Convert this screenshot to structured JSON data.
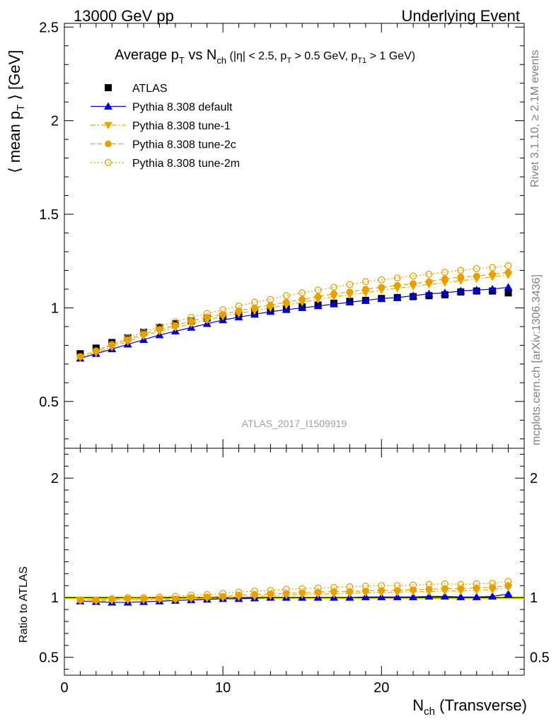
{
  "header": {
    "left": "13000 GeV pp",
    "right": "Underlying Event"
  },
  "side_labels": {
    "rivet": "Rivet 3.1.10, ≥ 2.1M events",
    "mcplots": "mcplots.cern.ch [arXiv:1306.3436]"
  },
  "watermark": "ATLAS_2017_I1509919",
  "chart_data": [
    {
      "type": "scatter",
      "panel": "main",
      "title_parts": {
        "main": "Average p",
        "main_sub": "T",
        "vs": " vs N",
        "vs_sub": "ch",
        "cuts_a": " (|η| < 2.5, p",
        "cuts_a_sub": "T",
        "cuts_b": " > 0.5 GeV, p",
        "cuts_b_sub": "T1",
        "cuts_c": " > 1 GeV)"
      },
      "ylabel_parts": {
        "pre": "⟨ mean p",
        "sub": "T",
        "post": " ⟩ [GeV]"
      },
      "xlim": [
        0,
        29
      ],
      "ylim": [
        0.25,
        2.52
      ],
      "y_ticks": [
        0.5,
        1,
        1.5,
        2,
        2.5
      ],
      "y_tick_labels": [
        "0.5",
        "1",
        "1.5",
        "2",
        "2.5"
      ],
      "legend_position": "top-left",
      "x": [
        1,
        2,
        3,
        4,
        5,
        6,
        7,
        8,
        9,
        10,
        11,
        12,
        13,
        14,
        15,
        16,
        17,
        18,
        19,
        20,
        21,
        22,
        23,
        24,
        25,
        26,
        27,
        28
      ],
      "series": [
        {
          "name": "ATLAS",
          "marker": "square",
          "color": "#000000",
          "line": "none",
          "values": [
            0.755,
            0.785,
            0.815,
            0.84,
            0.87,
            0.895,
            0.915,
            0.93,
            0.945,
            0.955,
            0.965,
            0.975,
            0.985,
            0.995,
            1.005,
            1.015,
            1.025,
            1.035,
            1.04,
            1.05,
            1.055,
            1.06,
            1.065,
            1.07,
            1.085,
            1.09,
            1.09,
            1.08
          ]
        },
        {
          "name": "Pythia 8.308 default",
          "marker": "triangle-up",
          "color": "#0000cc",
          "line": "solid",
          "values": [
            0.73,
            0.755,
            0.78,
            0.805,
            0.83,
            0.855,
            0.875,
            0.895,
            0.915,
            0.935,
            0.95,
            0.965,
            0.98,
            0.99,
            1.0,
            1.01,
            1.02,
            1.03,
            1.04,
            1.05,
            1.055,
            1.065,
            1.075,
            1.08,
            1.09,
            1.095,
            1.1,
            1.11
          ]
        },
        {
          "name": "Pythia 8.308 tune-1",
          "marker": "triangle-down",
          "color": "#e8a800",
          "line": "dashdot",
          "values": [
            0.735,
            0.76,
            0.79,
            0.82,
            0.85,
            0.875,
            0.895,
            0.915,
            0.935,
            0.955,
            0.97,
            0.985,
            1.0,
            1.015,
            1.03,
            1.045,
            1.06,
            1.07,
            1.08,
            1.095,
            1.105,
            1.115,
            1.125,
            1.135,
            1.145,
            1.155,
            1.165,
            1.175
          ]
        },
        {
          "name": "Pythia 8.308 tune-2c",
          "marker": "circle",
          "color": "#e8a000",
          "line": "dashed",
          "values": [
            0.74,
            0.77,
            0.8,
            0.83,
            0.86,
            0.885,
            0.905,
            0.93,
            0.95,
            0.965,
            0.985,
            1.0,
            1.015,
            1.03,
            1.045,
            1.06,
            1.075,
            1.085,
            1.1,
            1.11,
            1.12,
            1.13,
            1.14,
            1.155,
            1.165,
            1.17,
            1.18,
            1.19
          ]
        },
        {
          "name": "Pythia 8.308 tune-2m",
          "marker": "circle-open",
          "color": "#e8a000",
          "line": "dotted",
          "values": [
            0.74,
            0.77,
            0.805,
            0.84,
            0.87,
            0.9,
            0.925,
            0.95,
            0.97,
            0.99,
            1.01,
            1.03,
            1.045,
            1.065,
            1.08,
            1.095,
            1.11,
            1.125,
            1.14,
            1.15,
            1.16,
            1.17,
            1.18,
            1.19,
            1.2,
            1.21,
            1.215,
            1.225
          ]
        }
      ]
    },
    {
      "type": "scatter",
      "panel": "ratio",
      "ylabel": "Ratio to ATLAS",
      "xlabel_parts": {
        "pre": "N",
        "sub": "ch",
        "post": " (Transverse)"
      },
      "xlim": [
        0,
        29
      ],
      "ylim": [
        0.35,
        2.25
      ],
      "y_ticks": [
        0.5,
        1,
        2
      ],
      "y_tick_labels": [
        "0.5",
        "1",
        "2"
      ],
      "x_ticks": [
        0,
        10,
        20
      ],
      "x_tick_labels": [
        "0",
        "10",
        "20"
      ],
      "reference_line": 1,
      "band_color": "#e6e600",
      "x": [
        1,
        2,
        3,
        4,
        5,
        6,
        7,
        8,
        9,
        10,
        11,
        12,
        13,
        14,
        15,
        16,
        17,
        18,
        19,
        20,
        21,
        22,
        23,
        24,
        25,
        26,
        27,
        28
      ],
      "series": [
        {
          "name": "Pythia 8.308 default",
          "marker": "triangle-up",
          "color": "#0000cc",
          "line": "solid",
          "values": [
            0.97,
            0.965,
            0.96,
            0.96,
            0.965,
            0.97,
            0.975,
            0.98,
            0.985,
            0.99,
            0.99,
            0.995,
            1.0,
            1.0,
            1.0,
            1.0,
            1.0,
            1.0,
            1.005,
            1.005,
            1.005,
            1.005,
            1.01,
            1.01,
            1.005,
            1.005,
            1.01,
            1.03
          ]
        },
        {
          "name": "Pythia 8.308 tune-1",
          "marker": "triangle-down",
          "color": "#e8a800",
          "line": "dashdot",
          "values": [
            0.975,
            0.97,
            0.975,
            0.98,
            0.98,
            0.985,
            0.985,
            0.99,
            0.995,
            1.0,
            1.005,
            1.01,
            1.015,
            1.02,
            1.025,
            1.03,
            1.03,
            1.035,
            1.04,
            1.04,
            1.045,
            1.05,
            1.05,
            1.055,
            1.055,
            1.06,
            1.065,
            1.085
          ]
        },
        {
          "name": "Pythia 8.308 tune-2c",
          "marker": "circle",
          "color": "#e8a000",
          "line": "dashed",
          "values": [
            0.98,
            0.98,
            0.985,
            0.99,
            0.99,
            0.99,
            0.99,
            1.0,
            1.005,
            1.01,
            1.02,
            1.025,
            1.03,
            1.035,
            1.04,
            1.045,
            1.05,
            1.05,
            1.055,
            1.06,
            1.06,
            1.065,
            1.07,
            1.075,
            1.075,
            1.08,
            1.085,
            1.1
          ]
        },
        {
          "name": "Pythia 8.308 tune-2m",
          "marker": "circle-open",
          "color": "#e8a000",
          "line": "dotted",
          "values": [
            0.98,
            0.98,
            0.99,
            1.0,
            1.0,
            1.005,
            1.01,
            1.02,
            1.025,
            1.035,
            1.045,
            1.055,
            1.06,
            1.07,
            1.075,
            1.08,
            1.085,
            1.09,
            1.095,
            1.1,
            1.1,
            1.105,
            1.11,
            1.115,
            1.11,
            1.115,
            1.12,
            1.135
          ]
        }
      ]
    }
  ]
}
